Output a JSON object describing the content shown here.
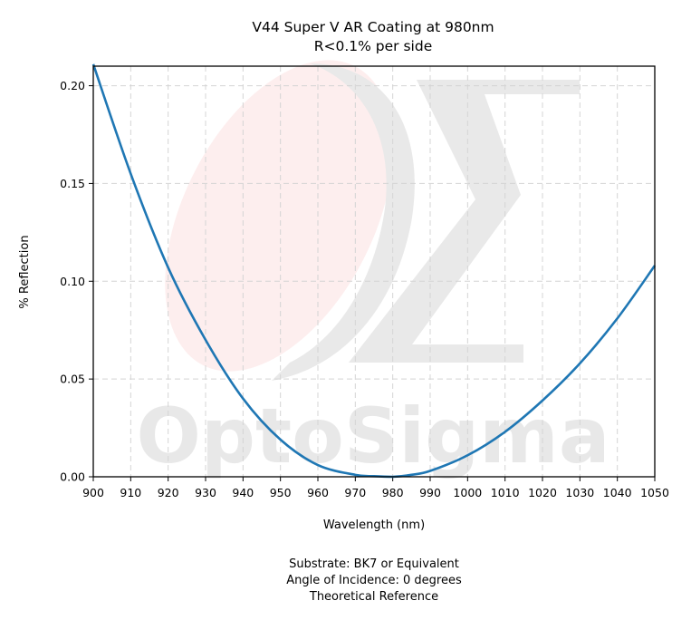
{
  "chart_data": {
    "type": "line",
    "title": "V44 Super V AR Coating at 980nm",
    "subtitle": "R<0.1% per side",
    "xlabel": "Wavelength (nm)",
    "ylabel": "% Reflection",
    "xlim": [
      900,
      1050
    ],
    "ylim": [
      0,
      0.21
    ],
    "x_ticks": [
      900,
      910,
      920,
      930,
      940,
      950,
      960,
      970,
      980,
      990,
      1000,
      1010,
      1020,
      1030,
      1040,
      1050
    ],
    "x_tick_labels": [
      "900",
      "910",
      "920",
      "930",
      "940",
      "950",
      "960",
      "970",
      "980",
      "990",
      "1000",
      "1010",
      "1020",
      "1030",
      "1040",
      "1050"
    ],
    "y_ticks": [
      0,
      0.05,
      0.1,
      0.15,
      0.2
    ],
    "y_tick_labels": [
      "0.00",
      "0.05",
      "0.10",
      "0.15",
      "0.20"
    ],
    "grid": true,
    "series": [
      {
        "color": "#1f77b4",
        "x": [
          900,
          910,
          920,
          930,
          940,
          950,
          960,
          970,
          975,
          980,
          985,
          990,
          1000,
          1010,
          1020,
          1030,
          1040,
          1050
        ],
        "y": [
          0.211,
          0.155,
          0.107,
          0.07,
          0.04,
          0.019,
          0.006,
          0.001,
          0.0003,
          0.0,
          0.001,
          0.003,
          0.011,
          0.023,
          0.039,
          0.058,
          0.081,
          0.108
        ]
      }
    ],
    "footer_lines": [
      "Substrate: BK7 or Equivalent",
      "Angle of Incidence: 0 degrees",
      "Theoretical Reference"
    ],
    "watermark_text": "OptoSigma"
  }
}
